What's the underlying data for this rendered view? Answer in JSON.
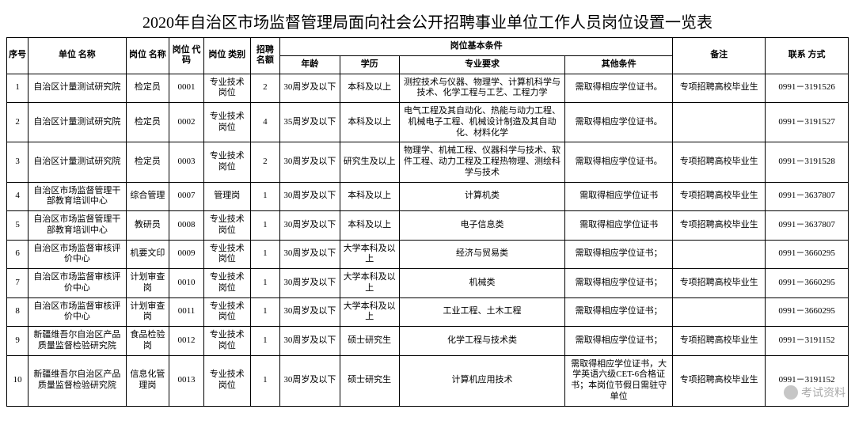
{
  "title": "2020年自治区市场监督管理局面向社会公开招聘事业单位工作人员岗位设置一览表",
  "headers": {
    "seq": "序号",
    "unit": "单位\n名称",
    "pos": "岗位\n名称",
    "code": "岗位\n代码",
    "type": "岗位\n类别",
    "quota": "招聘\n名额",
    "cond_group": "岗位基本条件",
    "age": "年龄",
    "edu": "学历",
    "major": "专业要求",
    "other": "其他条件",
    "note": "备注",
    "contact": "联系\n方式"
  },
  "rows": [
    {
      "seq": "1",
      "unit": "自治区计量测试研究院",
      "pos": "检定员",
      "code": "0001",
      "type": "专业技术岗位",
      "quota": "2",
      "age": "30周岁及以下",
      "edu": "本科及以上",
      "major": "测控技术与仪器、物理学、计算机科学与技术、化学工程与工艺、工程力学",
      "other": "需取得相应学位证书。",
      "note": "专项招聘高校毕业生",
      "contact": "0991－3191526"
    },
    {
      "seq": "2",
      "unit": "自治区计量测试研究院",
      "pos": "检定员",
      "code": "0002",
      "type": "专业技术岗位",
      "quota": "4",
      "age": "35周岁及以下",
      "edu": "本科及以上",
      "major": "电气工程及其自动化、热能与动力工程、机械电子工程、机械设计制造及其自动化、材料化学",
      "other": "需取得相应学位证书。",
      "note": "",
      "contact": "0991－3191527"
    },
    {
      "seq": "3",
      "unit": "自治区计量测试研究院",
      "pos": "检定员",
      "code": "0003",
      "type": "专业技术岗位",
      "quota": "2",
      "age": "30周岁及以下",
      "edu": "研究生及以上",
      "major": "物理学、机械工程、仪器科学与技术、软件工程、动力工程及工程热物理、测绘科学与技术",
      "other": "需取得相应学位证书。",
      "note": "专项招聘高校毕业生",
      "contact": "0991－3191528"
    },
    {
      "seq": "4",
      "unit": "自治区市场监督管理干部教育培训中心",
      "pos": "综合管理",
      "code": "0007",
      "type": "管理岗",
      "quota": "1",
      "age": "30周岁及以下",
      "edu": "本科及以上",
      "major": "计算机类",
      "other": "需取得相应学位证书",
      "note": "专项招聘高校毕业生",
      "contact": "0991－3637807"
    },
    {
      "seq": "5",
      "unit": "自治区市场监督管理干部教育培训中心",
      "pos": "教研员",
      "code": "0008",
      "type": "专业技术岗位",
      "quota": "1",
      "age": "30周岁及以下",
      "edu": "本科及以上",
      "major": "电子信息类",
      "other": "需取得相应学位证书",
      "note": "专项招聘高校毕业生",
      "contact": "0991－3637807"
    },
    {
      "seq": "6",
      "unit": "自治区市场监督审核评价中心",
      "pos": "机要文印",
      "code": "0009",
      "type": "专业技术岗位",
      "quota": "1",
      "age": "30周岁及以下",
      "edu": "大学本科及以上",
      "major": "经济与贸易类",
      "other": "需取得相应学位证书；",
      "note": "",
      "contact": "0991－3660295"
    },
    {
      "seq": "7",
      "unit": "自治区市场监督审核评价中心",
      "pos": "计划审查岗",
      "code": "0010",
      "type": "专业技术岗位",
      "quota": "1",
      "age": "30周岁及以下",
      "edu": "大学本科及以上",
      "major": "机械类",
      "other": "需取得相应学位证书；",
      "note": "专项招聘高校毕业生",
      "contact": "0991－3660295"
    },
    {
      "seq": "8",
      "unit": "自治区市场监督审核评价中心",
      "pos": "计划审查岗",
      "code": "0011",
      "type": "专业技术岗位",
      "quota": "1",
      "age": "30周岁及以下",
      "edu": "大学本科及以上",
      "major": "工业工程、土木工程",
      "other": "需取得相应学位证书；",
      "note": "",
      "contact": "0991－3660295"
    },
    {
      "seq": "9",
      "unit": "新疆维吾尔自治区产品质量监督检验研究院",
      "pos": "食品检验岗",
      "code": "0012",
      "type": "专业技术岗位",
      "quota": "1",
      "age": "30周岁及以下",
      "edu": "硕士研究生",
      "major": "化学工程与技术类",
      "other": "需取得相应学位证书；",
      "note": "专项招聘高校毕业生",
      "contact": "0991－3191152"
    },
    {
      "seq": "10",
      "unit": "新疆维吾尔自治区产品质量监督检验研究院",
      "pos": "信息化管理岗",
      "code": "0013",
      "type": "专业技术岗位",
      "quota": "1",
      "age": "30周岁及以下",
      "edu": "硕士研究生",
      "major": "计算机应用技术",
      "other": "需取得相应学位证书，大学英语六级CET-6合格证书；本岗位节假日需驻守单位",
      "note": "专项招聘高校毕业生",
      "contact": "0991－3191152"
    }
  ],
  "watermark": "考试资料"
}
